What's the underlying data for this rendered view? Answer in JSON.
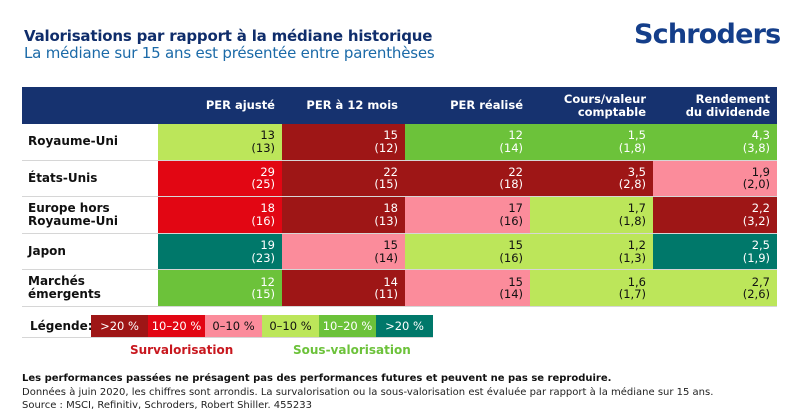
{
  "header": {
    "title": "Valorisations par rapport à la médiane historique",
    "subtitle": "La médiane sur 15 ans est présentée entre parenthèses",
    "logo": "Schroders"
  },
  "colors": {
    "over_gt20": "#9e1616",
    "over_10_20": "#e20613",
    "over_0_10": "#fb8c9b",
    "under_0_10": "#bce65a",
    "under_10_20": "#6cc23a",
    "under_gt20": "#00786a",
    "header_bg": "#16326f"
  },
  "chart_data": {
    "type": "table",
    "title": "Valorisations par rapport à la médiane historique",
    "subtitle": "La médiane sur 15 ans est présentée entre parenthèses",
    "columns": [
      "PER ajusté",
      "PER à 12 mois",
      "PER réalisé",
      "Cours/valeur comptable",
      "Rendement du dividende"
    ],
    "columns_display": [
      [
        "PER ajusté"
      ],
      [
        "PER à 12 mois"
      ],
      [
        "PER réalisé"
      ],
      [
        "Cours/valeur",
        "comptable"
      ],
      [
        "Rendement",
        "du dividende"
      ]
    ],
    "rows": [
      {
        "label": [
          "Royaume-Uni"
        ],
        "cells": [
          {
            "value": "13",
            "median": "(13)",
            "category": "under_0_10"
          },
          {
            "value": "15",
            "median": "(12)",
            "category": "over_gt20"
          },
          {
            "value": "12",
            "median": "(14)",
            "category": "under_10_20"
          },
          {
            "value": "1,5",
            "median": "(1,8)",
            "category": "under_10_20"
          },
          {
            "value": "4,3",
            "median": "(3,8)",
            "category": "under_10_20"
          }
        ]
      },
      {
        "label": [
          "États-Unis"
        ],
        "cells": [
          {
            "value": "29",
            "median": "(25)",
            "category": "over_10_20"
          },
          {
            "value": "22",
            "median": "(15)",
            "category": "over_gt20"
          },
          {
            "value": "22",
            "median": "(18)",
            "category": "over_gt20"
          },
          {
            "value": "3,5",
            "median": "(2,8)",
            "category": "over_gt20"
          },
          {
            "value": "1,9",
            "median": "(2,0)",
            "category": "over_0_10"
          }
        ]
      },
      {
        "label": [
          "Europe hors",
          "Royaume-Uni"
        ],
        "cells": [
          {
            "value": "18",
            "median": "(16)",
            "category": "over_10_20"
          },
          {
            "value": "18",
            "median": "(13)",
            "category": "over_gt20"
          },
          {
            "value": "17",
            "median": "(16)",
            "category": "over_0_10"
          },
          {
            "value": "1,7",
            "median": "(1,8)",
            "category": "under_0_10"
          },
          {
            "value": "2,2",
            "median": "(3,2)",
            "category": "over_gt20"
          }
        ]
      },
      {
        "label": [
          "Japon"
        ],
        "cells": [
          {
            "value": "19",
            "median": "(23)",
            "category": "under_gt20"
          },
          {
            "value": "15",
            "median": "(14)",
            "category": "over_0_10"
          },
          {
            "value": "15",
            "median": "(16)",
            "category": "under_0_10"
          },
          {
            "value": "1,2",
            "median": "(1,3)",
            "category": "under_0_10"
          },
          {
            "value": "2,5",
            "median": "(1,9)",
            "category": "under_gt20"
          }
        ]
      },
      {
        "label": [
          "Marchés émergents"
        ],
        "cells": [
          {
            "value": "12",
            "median": "(15)",
            "category": "under_10_20"
          },
          {
            "value": "14",
            "median": "(11)",
            "category": "over_gt20"
          },
          {
            "value": "15",
            "median": "(14)",
            "category": "over_0_10"
          },
          {
            "value": "1,6",
            "median": "(1,7)",
            "category": "under_0_10"
          },
          {
            "value": "2,7",
            "median": "(2,6)",
            "category": "under_0_10"
          }
        ]
      }
    ],
    "legend": {
      "label": "Légende:",
      "items": [
        {
          "text": ">20 %",
          "category": "over_gt20"
        },
        {
          "text": "10–20 %",
          "category": "over_10_20"
        },
        {
          "text": "0–10 %",
          "category": "over_0_10"
        },
        {
          "text": "0–10 %",
          "category": "under_0_10"
        },
        {
          "text": "10–20 %",
          "category": "under_10_20"
        },
        {
          "text": ">20 %",
          "category": "under_gt20"
        }
      ],
      "over_label": "Survalorisation",
      "under_label": "Sous-valorisation"
    }
  },
  "text_colors": {
    "over_gt20": "#ffffff",
    "over_10_20": "#ffffff",
    "over_0_10": "#111111",
    "under_0_10": "#111111",
    "under_10_20": "#ffffff",
    "under_gt20": "#ffffff"
  },
  "footnotes": {
    "disclaimer": "Les performances passées ne présagent pas des performances futures et peuvent ne pas se reproduire.",
    "data_note": "Données à juin 2020, les chiffres sont arrondis. La survalorisation ou la sous-valorisation est évaluée par rapport à la médiane sur 15 ans.",
    "source": "Source : MSCI, Refinitiv, Schroders, Robert Shiller. 455233"
  }
}
